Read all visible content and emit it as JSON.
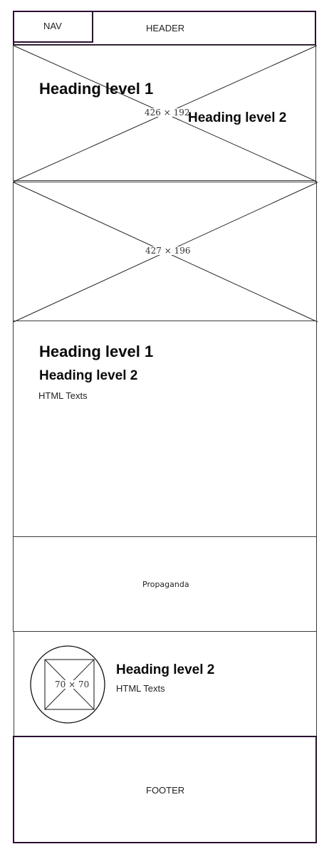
{
  "nav": {
    "label": "NAV"
  },
  "header": {
    "label": "HEADER"
  },
  "hero": {
    "placeholder_size": "426 × 192",
    "heading1": "Heading level 1",
    "heading2": "Heading level 2"
  },
  "banner": {
    "placeholder_size": "427 × 196"
  },
  "content": {
    "heading1": "Heading level 1",
    "heading2": "Heading level 2",
    "text": "HTML Texts"
  },
  "propaganda": {
    "label": "Propaganda"
  },
  "profile": {
    "avatar_size": "70 × 70",
    "heading2": "Heading level 2",
    "text": "HTML Texts"
  },
  "footer": {
    "label": "FOOTER"
  },
  "colors": {
    "frame_border": "#2b0f31",
    "line": "#222222"
  }
}
